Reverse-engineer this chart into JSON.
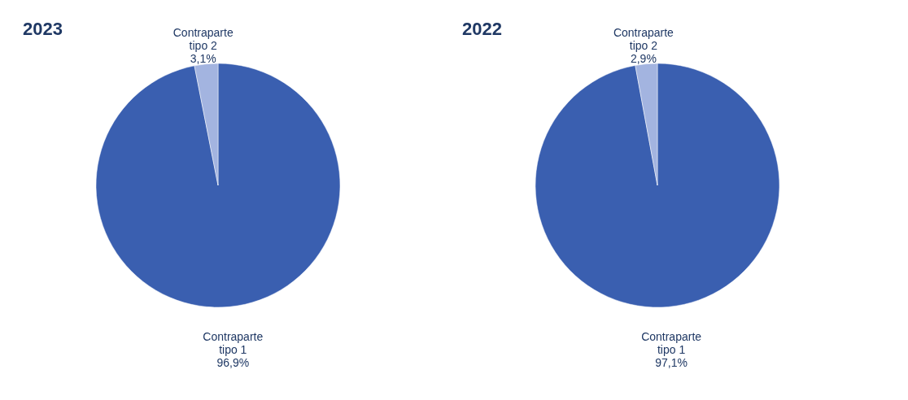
{
  "chart_data": [
    {
      "type": "pie",
      "title": "2023",
      "categories": [
        "Contraparte tipo 1",
        "Contraparte tipo 2"
      ],
      "values": [
        96.9,
        3.1
      ],
      "value_labels": [
        "96,9%",
        "3,1%"
      ],
      "colors": [
        "#3a5fb0",
        "#a3b4e0"
      ],
      "legend": false
    },
    {
      "type": "pie",
      "title": "2022",
      "categories": [
        "Contraparte tipo 1",
        "Contraparte tipo 2"
      ],
      "values": [
        97.1,
        2.9
      ],
      "value_labels": [
        "97,1%",
        "2,9%"
      ],
      "colors": [
        "#3a5fb0",
        "#a3b4e0"
      ],
      "legend": false
    }
  ]
}
